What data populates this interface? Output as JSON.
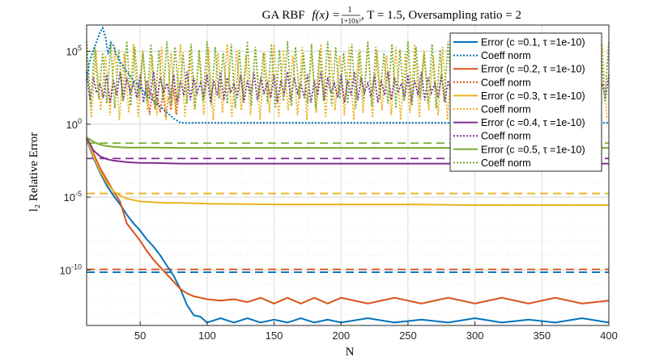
{
  "chart_data": {
    "type": "line",
    "title_prefix": "GA RBF",
    "title_func": "f(x) = ",
    "title_frac_num": "1",
    "title_frac_den": "1+10x²",
    "title_suffix": ", T = 1.5, Oversampling ratio = 2",
    "xlabel": "N",
    "ylabel": "l₂ Relative Error",
    "xscale": "linear",
    "yscale": "log",
    "xlim": [
      10,
      400
    ],
    "ylim_log10": [
      -13.8,
      6.8
    ],
    "xticks": [
      50,
      100,
      150,
      200,
      250,
      300,
      350,
      400
    ],
    "xtick_labels": [
      "50",
      "100",
      "150",
      "200",
      "250",
      "300",
      "350",
      "400"
    ],
    "yticks_log10": [
      5,
      0,
      -5,
      -10
    ],
    "ytick_labels": [
      {
        "base": "10",
        "exp": "5"
      },
      {
        "base": "10",
        "exp": "0"
      },
      {
        "base": "10",
        "exp": "-5"
      },
      {
        "base": "10",
        "exp": "-10"
      }
    ],
    "grid": true,
    "legend_position": "top-right",
    "legend": [
      {
        "label": "Error (c =0.1, τ =1e-10)",
        "color": "#0072BD",
        "style": "solid"
      },
      {
        "label": "Coeff norm",
        "color": "#0072BD",
        "style": "dotted"
      },
      {
        "label": "Error (c =0.2, τ =1e-10)",
        "color": "#D95319",
        "style": "solid"
      },
      {
        "label": "Coeff norm",
        "color": "#D95319",
        "style": "dotted"
      },
      {
        "label": "Error (c =0.3, τ =1e-10)",
        "color": "#EDB120",
        "style": "solid"
      },
      {
        "label": "Coeff norm",
        "color": "#EDB120",
        "style": "dotted"
      },
      {
        "label": "Error (c =0.4, τ =1e-10)",
        "color": "#7E2F8E",
        "style": "solid"
      },
      {
        "label": "Coeff norm",
        "color": "#7E2F8E",
        "style": "dotted"
      },
      {
        "label": "Error (c =0.5, τ =1e-10)",
        "color": "#77AC30",
        "style": "solid"
      },
      {
        "label": "Coeff norm",
        "color": "#77AC30",
        "style": "dotted"
      }
    ],
    "series": [
      {
        "name": "Error c=0.1",
        "color": "#0072BD",
        "style": "solid",
        "x": [
          10,
          15,
          20,
          25,
          30,
          35,
          40,
          45,
          50,
          55,
          60,
          65,
          70,
          75,
          80,
          85,
          90,
          95,
          100,
          110,
          120,
          130,
          140,
          150,
          160,
          170,
          180,
          190,
          200,
          220,
          240,
          260,
          280,
          300,
          320,
          340,
          360,
          380,
          400
        ],
        "log10y": [
          -1.0,
          -2.3,
          -3.3,
          -4.2,
          -4.9,
          -5.5,
          -6.2,
          -6.8,
          -7.3,
          -7.9,
          -8.4,
          -9.0,
          -9.7,
          -10.4,
          -11.3,
          -12.4,
          -13.1,
          -13.2,
          -13.6,
          -13.3,
          -13.6,
          -13.3,
          -13.6,
          -13.4,
          -13.6,
          -13.3,
          -13.6,
          -13.4,
          -13.6,
          -13.3,
          -13.6,
          -13.4,
          -13.6,
          -13.3,
          -13.6,
          -13.4,
          -13.6,
          -13.3,
          -13.6
        ]
      },
      {
        "name": "Error c=0.2",
        "color": "#D95319",
        "style": "solid",
        "x": [
          10,
          15,
          20,
          25,
          30,
          35,
          40,
          45,
          50,
          55,
          60,
          65,
          70,
          75,
          80,
          85,
          90,
          95,
          100,
          110,
          120,
          130,
          140,
          150,
          160,
          170,
          180,
          190,
          200,
          220,
          240,
          260,
          280,
          300,
          320,
          340,
          360,
          380,
          400
        ],
        "log10y": [
          -1.0,
          -2.0,
          -3.0,
          -3.8,
          -4.6,
          -5.3,
          -6.8,
          -7.4,
          -8.0,
          -8.7,
          -9.3,
          -9.8,
          -10.3,
          -10.8,
          -11.3,
          -11.6,
          -11.8,
          -11.9,
          -12.0,
          -12.1,
          -12.0,
          -12.2,
          -11.9,
          -12.3,
          -11.9,
          -12.3,
          -11.9,
          -12.3,
          -11.9,
          -12.3,
          -11.9,
          -12.3,
          -11.9,
          -12.3,
          -11.9,
          -12.3,
          -11.9,
          -12.3,
          -12.1
        ]
      },
      {
        "name": "Error c=0.3",
        "color": "#EDB120",
        "style": "solid",
        "x": [
          10,
          15,
          20,
          25,
          30,
          35,
          40,
          45,
          50,
          60,
          70,
          80,
          100,
          150,
          200,
          250,
          300,
          350,
          400
        ],
        "log10y": [
          -0.9,
          -2.2,
          -3.2,
          -4.0,
          -4.6,
          -4.9,
          -5.1,
          -5.2,
          -5.3,
          -5.35,
          -5.4,
          -5.4,
          -5.45,
          -5.5,
          -5.5,
          -5.5,
          -5.55,
          -5.55,
          -5.55
        ]
      },
      {
        "name": "Error c=0.4",
        "color": "#7E2F8E",
        "style": "solid",
        "x": [
          10,
          15,
          20,
          25,
          30,
          35,
          40,
          50,
          60,
          80,
          100,
          150,
          200,
          250,
          300,
          350,
          400
        ],
        "log10y": [
          -0.9,
          -1.8,
          -2.2,
          -2.4,
          -2.5,
          -2.55,
          -2.6,
          -2.65,
          -2.65,
          -2.7,
          -2.7,
          -2.7,
          -2.7,
          -2.7,
          -2.7,
          -2.7,
          -2.7
        ]
      },
      {
        "name": "Error c=0.5",
        "color": "#77AC30",
        "style": "solid",
        "x": [
          10,
          15,
          20,
          25,
          30,
          40,
          60,
          80,
          100,
          150,
          200,
          250,
          300,
          350,
          400
        ],
        "log10y": [
          -0.9,
          -1.2,
          -1.4,
          -1.5,
          -1.55,
          -1.6,
          -1.6,
          -1.62,
          -1.62,
          -1.62,
          -1.62,
          -1.62,
          -1.62,
          -1.62,
          -1.62
        ]
      },
      {
        "name": "Coeff norm c=0.1",
        "color": "#0072BD",
        "style": "dotted",
        "x": [
          10,
          12,
          14,
          16,
          18,
          20,
          22,
          24,
          26,
          28,
          30,
          32,
          35,
          40,
          45,
          50,
          55,
          60,
          65,
          70,
          75,
          80,
          90,
          100,
          150,
          200,
          250,
          300,
          350,
          400
        ],
        "log10y": [
          3.0,
          4.2,
          4.8,
          5.3,
          5.8,
          6.3,
          6.6,
          6.0,
          4.8,
          5.6,
          5.4,
          4.8,
          4.3,
          3.6,
          3.0,
          2.5,
          2.0,
          1.6,
          1.2,
          0.8,
          0.4,
          0.1,
          0.1,
          0.1,
          0.1,
          0.1,
          0.1,
          0.1,
          0.1,
          0.1
        ]
      }
    ],
    "dashed_levels": [
      {
        "color": "#0072BD",
        "log10y": -10.15
      },
      {
        "color": "#D95319",
        "log10y": -9.95
      },
      {
        "color": "#EDB120",
        "log10y": -4.75
      },
      {
        "color": "#7E2F8E",
        "log10y": -2.35
      },
      {
        "color": "#77AC30",
        "log10y": -1.3
      }
    ],
    "oscillating_norms": [
      {
        "color": "#D95319",
        "x_start": 55,
        "x_end": 80,
        "lo": 0.4,
        "hi": 2.5,
        "period": 4
      },
      {
        "color": "#EDB120",
        "x_start": 10,
        "x_end": 400,
        "lo": 0.2,
        "hi": 5.5,
        "period": 7
      },
      {
        "color": "#7E2F8E",
        "x_start": 10,
        "x_end": 400,
        "lo": 1.4,
        "hi": 3.6,
        "period": 5
      },
      {
        "color": "#77AC30",
        "x_start": 10,
        "x_end": 400,
        "lo": 1.0,
        "hi": 5.7,
        "period": 6
      }
    ]
  }
}
